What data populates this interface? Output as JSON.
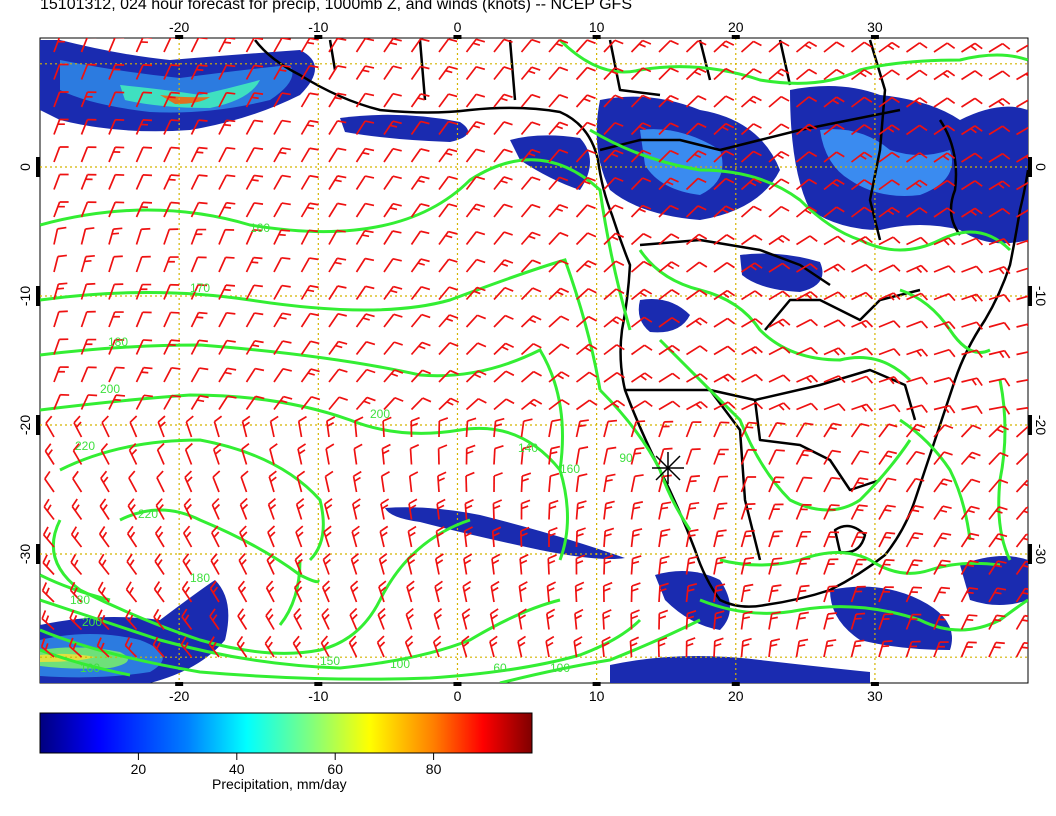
{
  "title": "15101312, 024 hour forecast for precip, 1000mb Z, and winds (knots) -- NCEP GFS",
  "map": {
    "lon_range": [
      -30,
      41
    ],
    "lat_range": [
      -40,
      10
    ],
    "lon_ticks": [
      -20,
      -10,
      0,
      10,
      20,
      30
    ],
    "lat_ticks": [
      0,
      -10,
      -20,
      -30
    ],
    "lon_tick_labels": [
      "-20",
      "-10",
      "0",
      "10",
      "20",
      "30"
    ],
    "lat_tick_labels": [
      "0",
      "-10",
      "-20",
      "-30"
    ],
    "grid": true,
    "contour_labels": [
      "160",
      "170",
      "180",
      "200",
      "200",
      "220",
      "220",
      "180",
      "180",
      "200",
      "160",
      "150",
      "140",
      "160",
      "100",
      "60",
      "100",
      "90"
    ],
    "colors": {
      "contour": "#33ee33",
      "wind_barb": "#ee1111",
      "coastline": "#000000",
      "grid": "#d4b400",
      "precip_low": "#00008b",
      "precip_high": "#7f0000"
    }
  },
  "colorbar": {
    "range": [
      0,
      100
    ],
    "tick_labels": [
      "20",
      "40",
      "60",
      "80"
    ],
    "label": "Precipitation, mm/day",
    "colors": [
      "#00007f",
      "#0000ff",
      "#007fff",
      "#00ffff",
      "#7fff7f",
      "#ffff00",
      "#ff7f00",
      "#ff0000",
      "#7f0000"
    ]
  }
}
